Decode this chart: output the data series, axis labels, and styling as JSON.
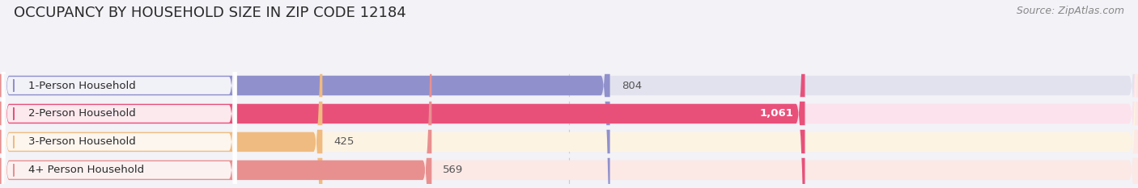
{
  "title": "OCCUPANCY BY HOUSEHOLD SIZE IN ZIP CODE 12184",
  "source": "Source: ZipAtlas.com",
  "categories": [
    "1-Person Household",
    "2-Person Household",
    "3-Person Household",
    "4+ Person Household"
  ],
  "values": [
    804,
    1061,
    425,
    569
  ],
  "bar_colors": [
    "#9090cc",
    "#e8507a",
    "#f0bb80",
    "#e89090"
  ],
  "bar_bg_colors": [
    "#e2e2ef",
    "#fce2ec",
    "#fdf3e3",
    "#fce8e5"
  ],
  "xlim": [
    0,
    1500
  ],
  "xticks": [
    0,
    750,
    1500
  ],
  "value_labels": [
    "804",
    "1,061",
    "425",
    "569"
  ],
  "label_inside": [
    false,
    true,
    false,
    false
  ],
  "background_color": "#f2f2f7",
  "title_fontsize": 13,
  "source_fontsize": 9,
  "bar_fontsize": 9
}
